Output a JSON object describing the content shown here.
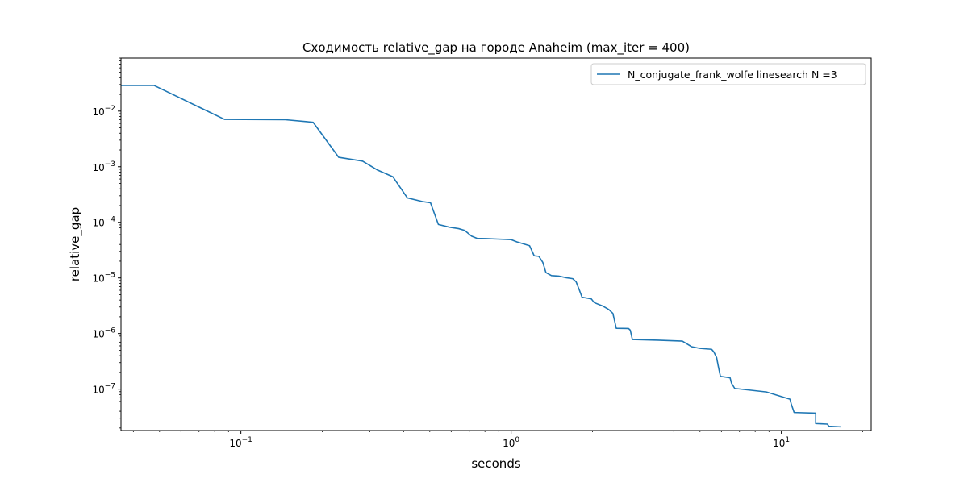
{
  "chart_data": {
    "type": "line",
    "title": "Сходимость relative_gap на городе Anaheim  (max_iter = 400)",
    "xlabel": "seconds",
    "ylabel": "relative_gap",
    "xscale": "log",
    "yscale": "log",
    "xlim": [
      0.036,
      21.5
    ],
    "ylim": [
      1.8e-08,
      0.09
    ],
    "grid": false,
    "legend_position": "top-right",
    "x_major_ticks": [
      {
        "value": 0.1,
        "base": "10",
        "exp": "−1"
      },
      {
        "value": 1,
        "base": "10",
        "exp": "0"
      },
      {
        "value": 10,
        "base": "10",
        "exp": "1"
      }
    ],
    "y_major_ticks": [
      {
        "value": 1e-07,
        "base": "10",
        "exp": "−7"
      },
      {
        "value": 1e-06,
        "base": "10",
        "exp": "−6"
      },
      {
        "value": 1e-05,
        "base": "10",
        "exp": "−5"
      },
      {
        "value": 0.0001,
        "base": "10",
        "exp": "−4"
      },
      {
        "value": 0.001,
        "base": "10",
        "exp": "−3"
      },
      {
        "value": 0.01,
        "base": "10",
        "exp": "−2"
      }
    ],
    "series": [
      {
        "name": "N_conjugate_frank_wolfe linesearch N =3",
        "color": "#1f77b4",
        "x": [
          0.036,
          0.0477,
          0.087,
          0.146,
          0.185,
          0.23,
          0.282,
          0.319,
          0.365,
          0.413,
          0.47,
          0.503,
          0.538,
          0.59,
          0.64,
          0.673,
          0.714,
          0.748,
          0.811,
          0.89,
          1.0,
          1.05,
          1.17,
          1.217,
          1.266,
          1.31,
          1.345,
          1.41,
          1.5,
          1.6,
          1.69,
          1.74,
          1.79,
          1.83,
          1.98,
          2.03,
          2.19,
          2.3,
          2.38,
          2.45,
          2.72,
          2.76,
          2.81,
          3.5,
          4.3,
          4.45,
          4.65,
          5.0,
          5.52,
          5.62,
          5.76,
          5.85,
          5.95,
          6.46,
          6.54,
          6.72,
          8.8,
          10.76,
          10.88,
          11.15,
          13.4,
          13.4,
          14.8,
          15.0,
          16.6
        ],
        "y": [
          0.029,
          0.029,
          0.0071,
          0.007,
          0.0063,
          0.00148,
          0.00126,
          0.00088,
          0.00066,
          0.000275,
          0.000236,
          0.000225,
          9.15e-05,
          8.2e-05,
          7.7e-05,
          7.15e-05,
          5.65e-05,
          5.15e-05,
          5.1e-05,
          5e-05,
          4.88e-05,
          4.45e-05,
          3.8e-05,
          2.5e-05,
          2.45e-05,
          1.9e-05,
          1.25e-05,
          1.1e-05,
          1.08e-05,
          1.01e-05,
          9.7e-06,
          8.5e-06,
          6e-06,
          4.5e-06,
          4.2e-06,
          3.6e-06,
          3.1e-06,
          2.7e-06,
          2.3e-06,
          1.24e-06,
          1.23e-06,
          1.15e-06,
          7.8e-07,
          7.6e-07,
          7.3e-07,
          6.6e-07,
          5.8e-07,
          5.4e-07,
          5.2e-07,
          4.7e-07,
          3.7e-07,
          2.5e-07,
          1.7e-07,
          1.6e-07,
          1.28e-07,
          1.03e-07,
          8.9e-08,
          6.6e-08,
          5.4e-08,
          3.8e-08,
          3.7e-08,
          2.4e-08,
          2.35e-08,
          2.15e-08,
          2.1e-08
        ]
      }
    ]
  }
}
